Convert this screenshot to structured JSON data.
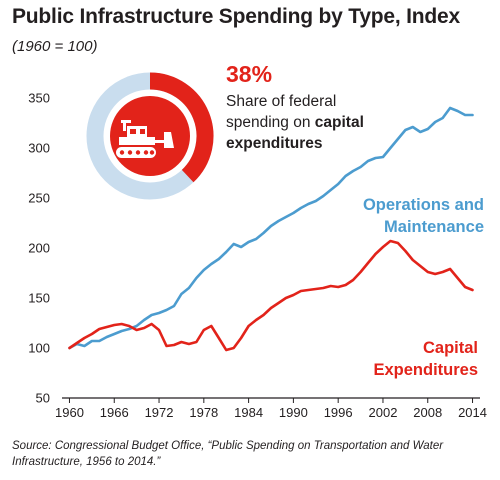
{
  "title": "Public Infrastructure Spending by Type, Index",
  "subtitle": "(1960 = 100)",
  "callout": {
    "percent": "38%",
    "text_plain": "Share of federal spending on ",
    "text_bold": "capital expenditures",
    "share_value": 0.38,
    "ring_colors": {
      "filled": "#e2231a",
      "remaining": "#c9ddee"
    }
  },
  "icon": "bulldozer-icon",
  "series_labels": {
    "ops_line1": "Operations and",
    "ops_line2": "Maintenance",
    "cap_line1": "Capital",
    "cap_line2": "Expenditures"
  },
  "source": "Source: Congressional Budget Office, “Public Spending on Transportation and Water Infrastructure, 1956 to 2014.”",
  "colors": {
    "ops": "#4c9ccf",
    "capital": "#e2231a",
    "axis": "#231f20"
  },
  "chart_data": {
    "type": "line",
    "xlim": [
      1959,
      2015
    ],
    "ylim": [
      50,
      350
    ],
    "x_ticks": [
      1960,
      1966,
      1972,
      1978,
      1984,
      1990,
      1996,
      2002,
      2008,
      2014
    ],
    "y_ticks": [
      50,
      100,
      150,
      200,
      250,
      300,
      350
    ],
    "grid": false,
    "series": [
      {
        "name": "Operations and Maintenance",
        "color": "#4c9ccf",
        "x": [
          1960,
          1961,
          1962,
          1963,
          1964,
          1965,
          1966,
          1967,
          1968,
          1969,
          1970,
          1971,
          1972,
          1973,
          1974,
          1975,
          1976,
          1977,
          1978,
          1979,
          1980,
          1981,
          1982,
          1983,
          1984,
          1985,
          1986,
          1987,
          1988,
          1989,
          1990,
          1991,
          1992,
          1993,
          1994,
          1995,
          1996,
          1997,
          1998,
          1999,
          2000,
          2001,
          2002,
          2003,
          2004,
          2005,
          2006,
          2007,
          2008,
          2009,
          2010,
          2011,
          2012,
          2013,
          2014
        ],
        "values": [
          100,
          104,
          102,
          107,
          107,
          111,
          114,
          117,
          119,
          122,
          128,
          133,
          135,
          138,
          142,
          154,
          160,
          170,
          178,
          184,
          189,
          196,
          204,
          201,
          206,
          209,
          215,
          222,
          227,
          231,
          235,
          240,
          244,
          247,
          252,
          258,
          264,
          272,
          277,
          281,
          287,
          290,
          291,
          300,
          309,
          318,
          321,
          316,
          319,
          326,
          330,
          340,
          337,
          333,
          333
        ]
      },
      {
        "name": "Capital Expenditures",
        "color": "#e2231a",
        "x": [
          1960,
          1961,
          1962,
          1963,
          1964,
          1965,
          1966,
          1967,
          1968,
          1969,
          1970,
          1971,
          1972,
          1973,
          1974,
          1975,
          1976,
          1977,
          1978,
          1979,
          1980,
          1981,
          1982,
          1983,
          1984,
          1985,
          1986,
          1987,
          1988,
          1989,
          1990,
          1991,
          1992,
          1993,
          1994,
          1995,
          1996,
          1997,
          1998,
          1999,
          2000,
          2001,
          2002,
          2003,
          2004,
          2005,
          2006,
          2007,
          2008,
          2009,
          2010,
          2011,
          2012,
          2013,
          2014
        ],
        "values": [
          100,
          105,
          110,
          114,
          119,
          121,
          123,
          124,
          122,
          118,
          120,
          124,
          118,
          102,
          103,
          106,
          104,
          106,
          118,
          122,
          110,
          98,
          100,
          110,
          122,
          128,
          133,
          140,
          145,
          150,
          153,
          157,
          158,
          159,
          160,
          162,
          161,
          163,
          168,
          176,
          185,
          194,
          201,
          207,
          205,
          197,
          188,
          182,
          176,
          174,
          176,
          179,
          170,
          161,
          158
        ]
      }
    ]
  }
}
